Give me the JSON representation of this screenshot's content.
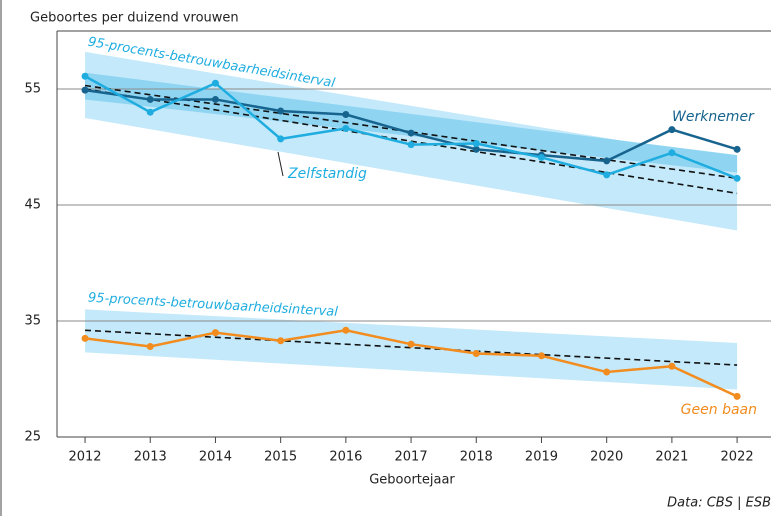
{
  "chart_data": {
    "type": "line",
    "title": "Geboortes per duizend vrouwen",
    "x_label": "Geboortejaar",
    "source": "Data: CBS | ESB",
    "x": [
      2012,
      2013,
      2014,
      2015,
      2016,
      2017,
      2018,
      2019,
      2020,
      2021,
      2022
    ],
    "xlim": [
      2011.57,
      2022.52
    ],
    "xticks": [
      2012,
      2013,
      2014,
      2015,
      2016,
      2017,
      2018,
      2019,
      2020,
      2021,
      2022
    ],
    "ylim": [
      25,
      60
    ],
    "yticks": [
      25,
      35,
      45,
      55
    ],
    "grid": true,
    "series": [
      {
        "name": "Werknemer",
        "color": "#17648f",
        "values": [
          54.9,
          54.1,
          54.1,
          53.1,
          52.8,
          51.2,
          49.8,
          49.3,
          48.8,
          51.5,
          49.8
        ]
      },
      {
        "name": "Zelfstandig",
        "color": "#1fade0",
        "values": [
          56.1,
          53.0,
          55.5,
          50.7,
          51.6,
          50.2,
          50.3,
          49.1,
          47.6,
          49.5,
          47.3
        ]
      },
      {
        "name": "Geen baan",
        "color": "#f28c1e",
        "values": [
          33.5,
          32.8,
          34.0,
          33.3,
          34.2,
          33.0,
          32.2,
          32.0,
          30.6,
          31.1,
          28.5
        ]
      }
    ],
    "bands": [
      {
        "x": [
          2012,
          2022
        ],
        "lower": [
          52.5,
          42.8
        ],
        "upper": [
          58.2,
          48.9
        ],
        "color": "#c4e9fa"
      },
      {
        "x": [
          2012,
          2022
        ],
        "lower": [
          54.1,
          47.8
        ],
        "upper": [
          56.4,
          49.3
        ],
        "color": "#8fd5f2"
      },
      {
        "x": [
          2012,
          2022
        ],
        "lower": [
          32.3,
          29.1
        ],
        "upper": [
          36.0,
          33.1
        ],
        "color": "#c4e9fa"
      }
    ],
    "trends": [
      {
        "x": [
          2012,
          2022
        ],
        "values": [
          55.3,
          47.3
        ]
      },
      {
        "x": [
          2012,
          2022
        ],
        "values": [
          55.0,
          46.0
        ]
      },
      {
        "x": [
          2012,
          2022
        ],
        "values": [
          34.2,
          31.2
        ]
      }
    ],
    "annotations": [
      "95-procents-betrouwbaarheidsinterval",
      "95-procents-betrouwbaarheidsinterval"
    ]
  }
}
